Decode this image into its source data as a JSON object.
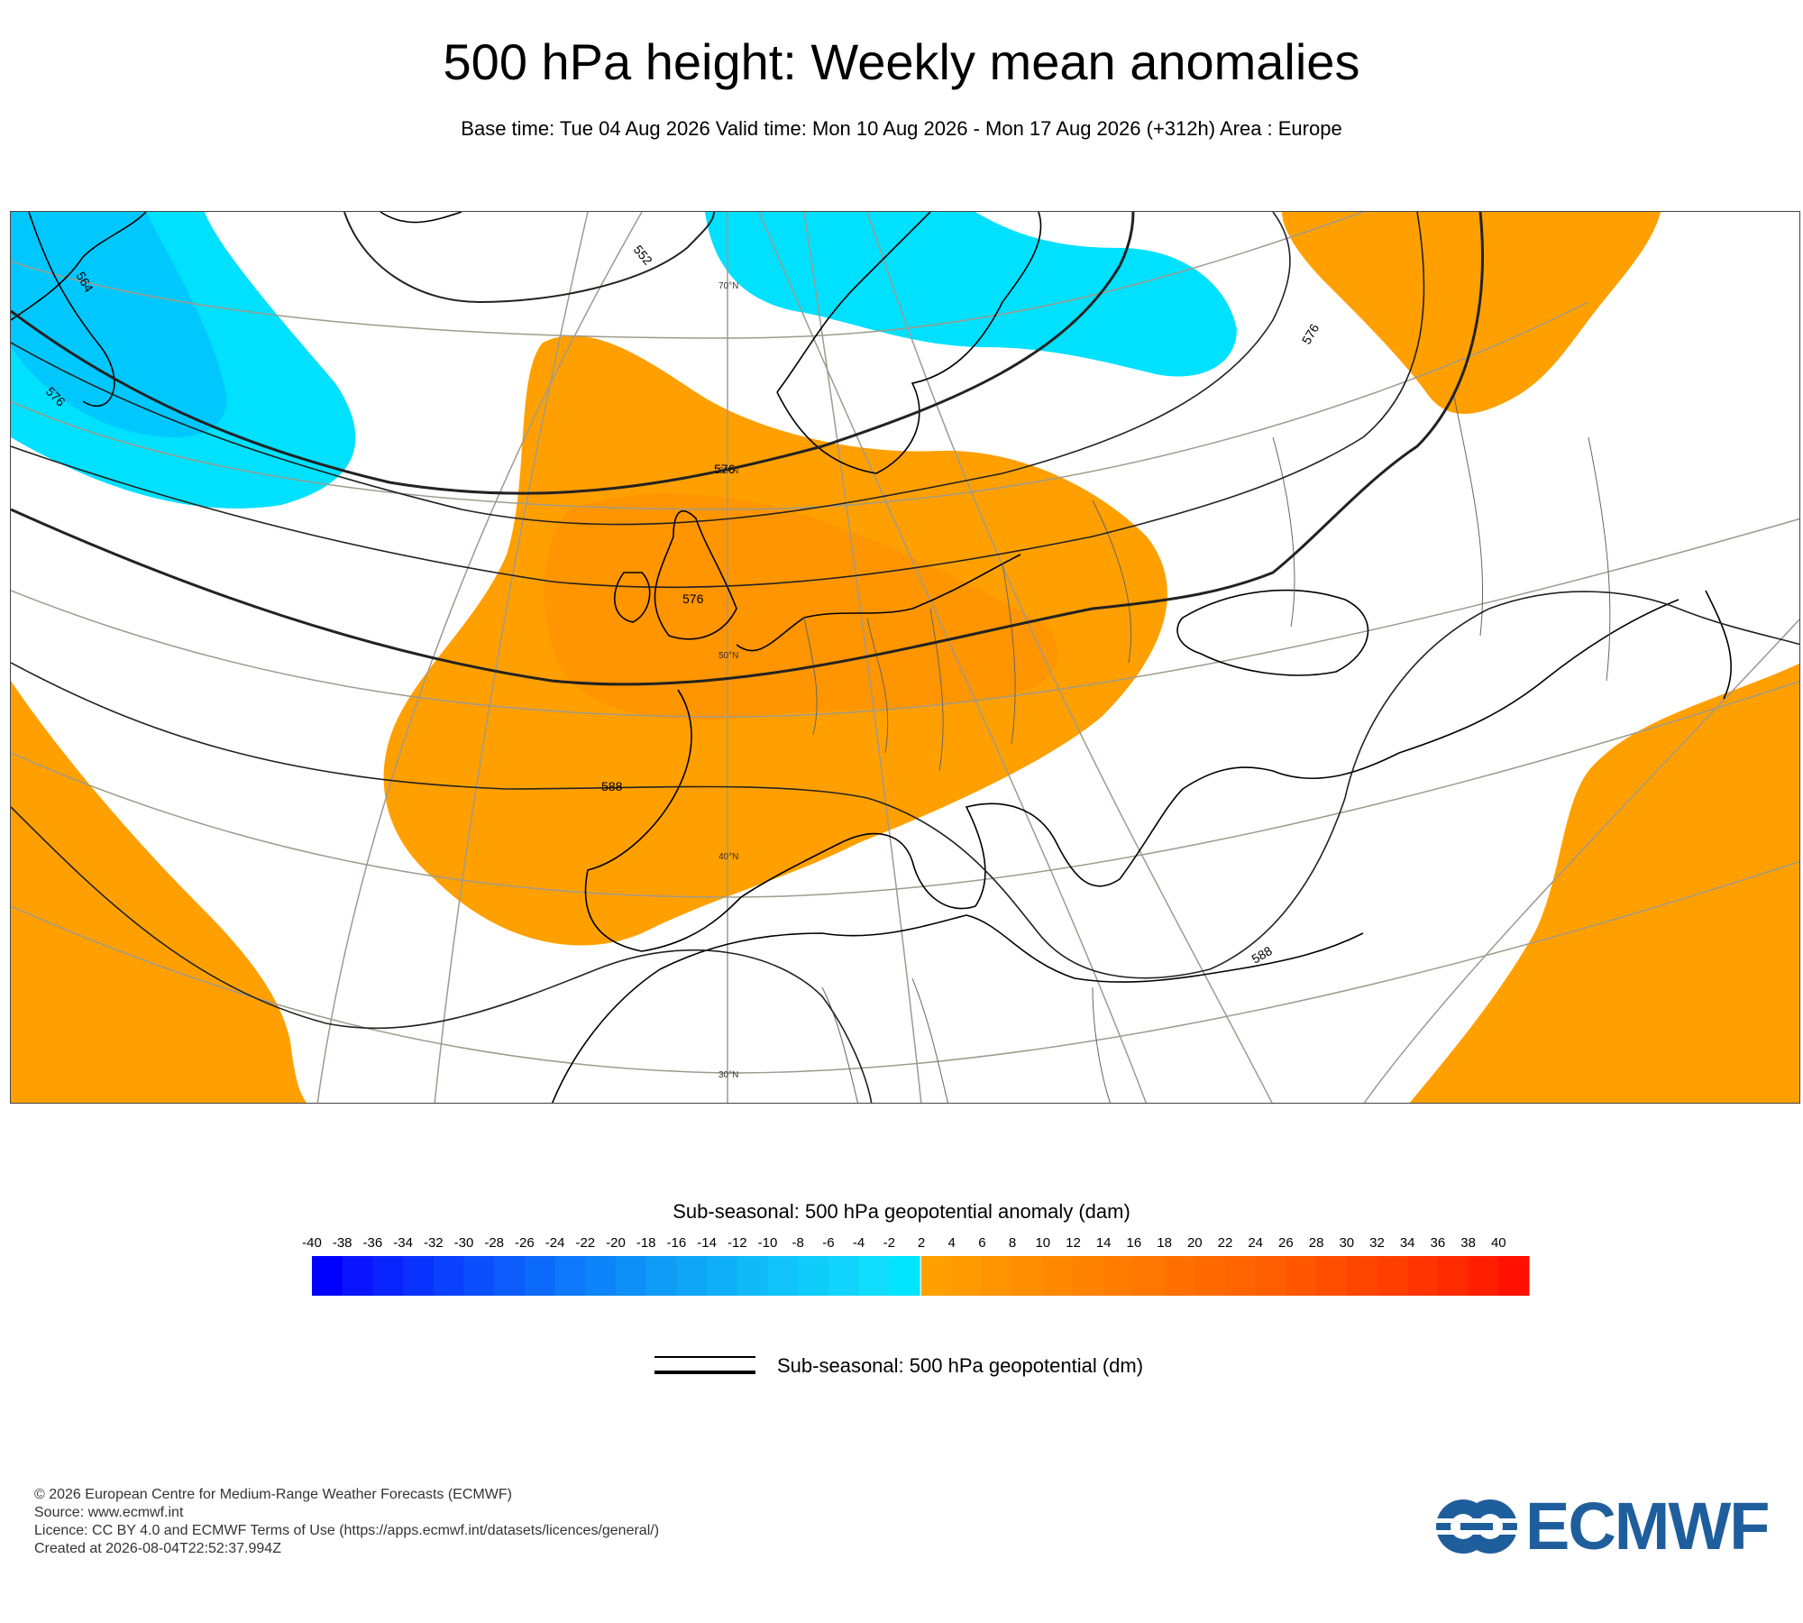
{
  "header": {
    "title": "500 hPa height: Weekly mean anomalies",
    "subtitle": "Base time: Tue 04 Aug 2026 Valid time: Mon 10 Aug 2026 - Mon 17 Aug 2026 (+312h) Area : Europe"
  },
  "map": {
    "contour_labels": [
      "552",
      "564",
      "576",
      "576",
      "576",
      "576",
      "588",
      "588"
    ],
    "latitude_labels": [
      "70°N",
      "60°N",
      "50°N",
      "40°N",
      "30°N"
    ],
    "colors": {
      "negative_anomaly": "#00e0ff",
      "negative_anomaly_strong": "#00c8ff",
      "positive_anomaly": "#ffa000",
      "positive_anomaly_strong": "#ff8c00",
      "graticule": "#a09a8c",
      "coastline": "#000000",
      "border": "#666666"
    }
  },
  "legend": {
    "shading_title": "Sub-seasonal: 500 hPa geopotential anomaly (dam)",
    "ticks_negative": [
      "-40",
      "-38",
      "-36",
      "-34",
      "-32",
      "-30",
      "-28",
      "-26",
      "-24",
      "-22",
      "-20",
      "-18",
      "-16",
      "-14",
      "-12",
      "-10",
      "-8",
      "-6",
      "-4",
      "-2"
    ],
    "ticks_positive": [
      "2",
      "4",
      "6",
      "8",
      "10",
      "12",
      "14",
      "16",
      "18",
      "20",
      "22",
      "24",
      "26",
      "28",
      "30",
      "32",
      "34",
      "36",
      "38",
      "40"
    ],
    "negative_colors": [
      "#0000ff",
      "#0a14ff",
      "#0a24ff",
      "#0a32ff",
      "#0a40fe",
      "#0b4efd",
      "#0c5cfc",
      "#0c6afb",
      "#0d78fa",
      "#0d84f9",
      "#0e90f8",
      "#0e9cf7",
      "#0fa6f8",
      "#10b0f9",
      "#10baf9",
      "#10c4fa",
      "#10ccfb",
      "#10d4fc",
      "#10dcfd",
      "#00e4ff"
    ],
    "positive_colors": [
      "#ffa000",
      "#ff9a00",
      "#ff9400",
      "#ff8e00",
      "#ff8800",
      "#ff8200",
      "#ff7c00",
      "#ff7600",
      "#ff7000",
      "#ff6a00",
      "#ff6400",
      "#ff5e00",
      "#ff5600",
      "#ff4e00",
      "#ff4600",
      "#ff3e00",
      "#ff3400",
      "#ff2a00",
      "#ff1e00",
      "#ff1000"
    ],
    "contour_title": "Sub-seasonal: 500 hPa geopotential (dm)"
  },
  "footer": {
    "lines": [
      "© 2026 European Centre for Medium-Range Weather Forecasts (ECMWF)",
      "Source: www.ecmwf.int",
      "Licence: CC BY 4.0 and ECMWF Terms of Use (https://apps.ecmwf.int/datasets/licences/general/)",
      "Created at 2026-08-04T22:52:37.994Z"
    ],
    "logo_text": "ECMWF",
    "logo_color": "#1f5e9c"
  }
}
